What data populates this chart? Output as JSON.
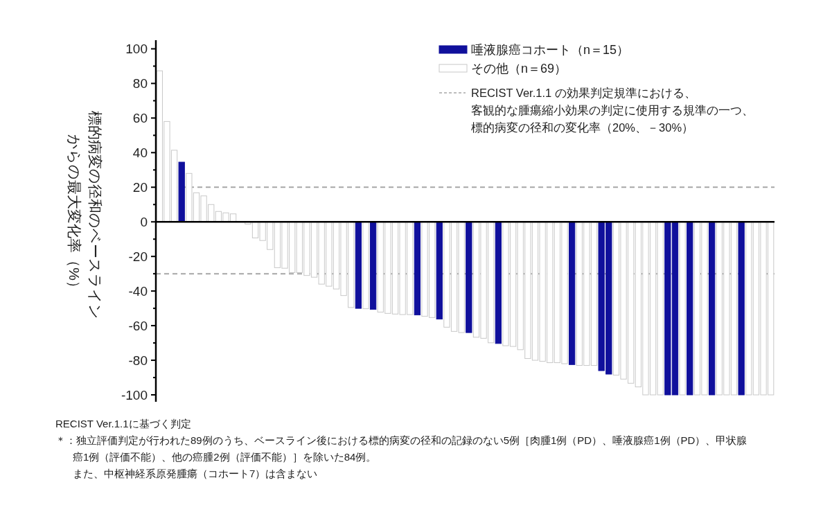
{
  "chart_data": {
    "type": "bar",
    "ylabel": "標的病変の径和のベースラインからの最大変化率（%）",
    "categories": [
      null,
      null,
      null,
      null,
      null,
      null,
      null,
      null,
      null,
      null,
      null,
      null,
      null,
      null,
      null,
      null,
      null,
      null,
      null,
      null,
      null,
      null,
      null,
      null,
      null,
      null,
      null,
      null,
      null,
      null,
      null,
      null,
      null,
      null,
      null,
      null,
      null,
      null,
      null,
      null,
      null,
      null,
      null,
      null,
      null,
      null,
      null,
      null,
      null,
      null,
      null,
      null,
      null,
      null,
      null,
      null,
      null,
      null,
      null,
      null,
      null,
      null,
      null,
      null,
      null,
      null,
      null,
      null,
      null,
      null,
      null,
      null,
      null,
      null,
      null,
      null,
      null,
      null,
      null,
      null,
      null,
      null,
      null,
      null
    ],
    "series": [
      {
        "name": "唾液腺癌コホート（n＝15）",
        "color": "#10109c",
        "values": [
          null,
          null,
          null,
          34.5,
          null,
          null,
          null,
          null,
          null,
          null,
          null,
          null,
          null,
          null,
          null,
          null,
          null,
          null,
          null,
          null,
          null,
          null,
          null,
          null,
          null,
          null,
          null,
          -50,
          null,
          -50.6,
          null,
          null,
          null,
          null,
          null,
          -53.8,
          null,
          null,
          -56.2,
          null,
          null,
          null,
          -64,
          null,
          null,
          null,
          -70.3,
          null,
          null,
          null,
          null,
          null,
          null,
          null,
          null,
          null,
          -82.5,
          null,
          null,
          null,
          -86,
          -88,
          null,
          null,
          null,
          null,
          null,
          null,
          null,
          -100,
          -100,
          null,
          -100,
          null,
          null,
          -100,
          null,
          null,
          null,
          -100,
          null,
          null,
          null,
          null
        ]
      },
      {
        "name": "その他（n＝69）",
        "color": "#ffffff",
        "values": [
          87.3,
          58,
          41.4,
          null,
          28,
          16.8,
          15,
          10,
          6,
          5.2,
          4.6,
          null,
          -1.3,
          -9.3,
          -10.8,
          -16,
          -26.5,
          -26.8,
          -29.3,
          -29.3,
          -31,
          -32,
          -36,
          -37.2,
          -38.8,
          -42.6,
          -49.5,
          null,
          -50.2,
          null,
          -52.2,
          -52.9,
          -53.3,
          -53.6,
          -53.6,
          null,
          -54.6,
          -55.3,
          null,
          -60.9,
          -63.3,
          -64,
          null,
          -66.7,
          -67.3,
          -69.9,
          null,
          -71.6,
          -72,
          -73.9,
          -79,
          -80,
          -80.6,
          -81.4,
          -81.4,
          -82,
          null,
          -83,
          -83,
          -83,
          null,
          null,
          -88.6,
          -90.9,
          -93.3,
          -95.4,
          -100,
          -100,
          -100,
          null,
          null,
          -100,
          null,
          -100,
          -100,
          null,
          -100,
          -100,
          -100,
          null,
          -100,
          -100,
          -100,
          -100
        ]
      }
    ],
    "ylim": [
      -104,
      105
    ],
    "yticks": [
      -100,
      {
        "value": -90,
        "label": null
      },
      -80,
      {
        "value": -70,
        "label": null
      },
      -60,
      {
        "value": -50,
        "label": null
      },
      -40,
      {
        "value": -30,
        "label": null
      },
      -20,
      {
        "value": -10,
        "label": null
      },
      0,
      {
        "value": 10,
        "label": null
      },
      20,
      {
        "value": 30,
        "label": null
      },
      40,
      {
        "value": 50,
        "label": null
      },
      60,
      {
        "value": 70,
        "label": null
      },
      80,
      {
        "value": 90,
        "label": null
      },
      100
    ],
    "ref_lines": [
      {
        "axis": "y",
        "value": 20,
        "label": "RECIST Ver.1.1 の効果判定規準における、客観的な腫瘍縮小効果の判定に使用する規準の一つ、標的病変の径和の変化率（20%、－30%）",
        "color": "#a6a6a6",
        "line_style": "dashed"
      },
      {
        "axis": "y",
        "value": -30,
        "label": null,
        "color": "#a6a6a6",
        "line_style": "dashed"
      }
    ],
    "legend": "top right",
    "grid": false,
    "annotations": [
      "RECIST Ver.1.1に基づく判定",
      "＊：独立評価判定が行われた89例のうち、ベースライン後における標的病変の径和の記録のない5例［肉腫1例（PD）、唾液腺癌1例（PD）、甲状腺癌1例（評価不能）、他の癌腫2例（評価不能）］を除いた84例。",
      "また、中枢神経系原発腫瘍（コホート7）は含まない"
    ]
  }
}
